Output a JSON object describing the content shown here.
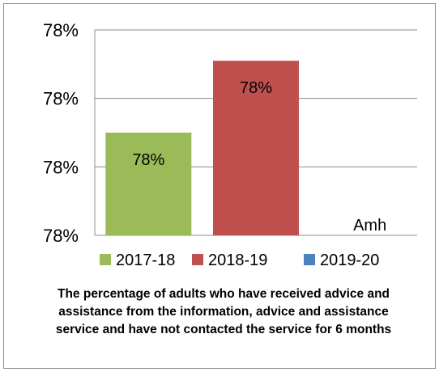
{
  "chart_data": {
    "type": "bar",
    "categories": [
      "2017-18",
      "2018-19",
      "2019-20"
    ],
    "series": [
      {
        "name": "2017-18",
        "color": "#9bbb59",
        "value": 78,
        "label": "78%"
      },
      {
        "name": "2018-19",
        "color": "#c0504d",
        "value": 78,
        "label": "78%"
      },
      {
        "name": "2019-20",
        "color": "#4f81bd",
        "value": null,
        "label": "Amh"
      }
    ],
    "y_tick_labels": [
      "78%",
      "78%",
      "78%",
      "78%"
    ],
    "title": "The percentage of adults who have received advice and assistance from the information, advice and assistance service and have not contacted the service for 6 months",
    "grid": true,
    "legend_position": "bottom"
  }
}
